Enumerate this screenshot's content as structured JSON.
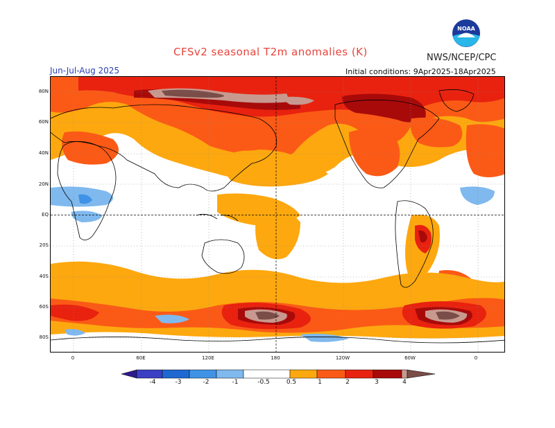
{
  "title": "CFSv2  seasonal  T2m  anomalies  (K)",
  "agency": "NWS/NCEP/CPC",
  "logo": {
    "name": "noaa-logo",
    "text": "NOAA"
  },
  "season": "Jun-Jul-Aug 2025",
  "initial_conditions": "Initial conditions: 9Apr2025-18Apr2025",
  "lat_labels": [
    "80N",
    "60N",
    "40N",
    "20N",
    "EQ",
    "20S",
    "40S",
    "60S",
    "80S"
  ],
  "lon_labels": [
    "0",
    "60E",
    "120E",
    "180",
    "120W",
    "60W",
    "0"
  ],
  "colorbar": {
    "labels": [
      "-4",
      "-3",
      "-2",
      "-1",
      "-0.5",
      "0.5",
      "1",
      "2",
      "3",
      "4"
    ],
    "colors": {
      "lt_-4": "#2d1a8f",
      "-4_-3": "#3a3fc4",
      "-3_-2": "#1f68d1",
      "-2_-1": "#3f92e6",
      "-1_-0.5": "#7fb9ee",
      "-0.5_0.5": "#ffffff",
      "0.5_1": "#fda80f",
      "1_2": "#fb5a16",
      "2_3": "#e8220f",
      "3_4": "#a80a0a",
      "4_5": "#c8998f",
      "gt_5": "#7a4d48"
    }
  }
}
